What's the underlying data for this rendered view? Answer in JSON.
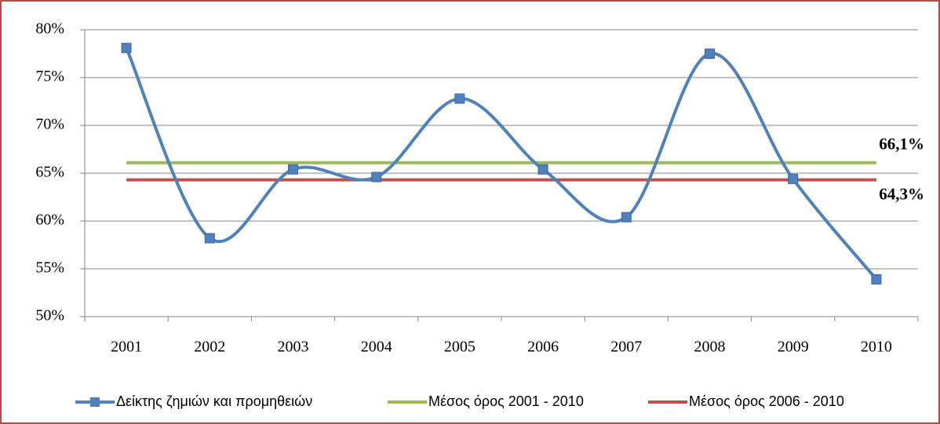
{
  "chart_data": {
    "type": "line",
    "categories": [
      "2001",
      "2002",
      "2003",
      "2004",
      "2005",
      "2006",
      "2007",
      "2008",
      "2009",
      "2010"
    ],
    "series": [
      {
        "name": "Δείκτης ζημιών και προμηθειών",
        "color": "#4f81bd",
        "smooth": true,
        "marker": "square",
        "values": [
          78.1,
          58.2,
          65.4,
          64.6,
          72.8,
          65.4,
          60.4,
          77.5,
          64.4,
          53.9
        ]
      },
      {
        "name": "Μέσος όρος 2001 - 2010",
        "color": "#9bbb59",
        "values": [
          66.1,
          66.1,
          66.1,
          66.1,
          66.1,
          66.1,
          66.1,
          66.1,
          66.1,
          66.1
        ],
        "value_labels": [
          null,
          null,
          null,
          null,
          null,
          null,
          null,
          null,
          null,
          "66,1%"
        ]
      },
      {
        "name": "Μέσος όρος 2006 - 2010",
        "color": "#c0504d",
        "values": [
          64.3,
          64.3,
          64.3,
          64.3,
          64.3,
          64.3,
          64.3,
          64.3,
          64.3,
          64.3
        ],
        "value_labels": [
          null,
          null,
          null,
          null,
          null,
          null,
          null,
          null,
          null,
          "64,3%"
        ]
      }
    ],
    "ylim": [
      50,
      80
    ],
    "yticks": [
      {
        "value": 50,
        "label": "50%"
      },
      {
        "value": 55,
        "label": "55%"
      },
      {
        "value": 60,
        "label": "60%"
      },
      {
        "value": 65,
        "label": "65%"
      },
      {
        "value": 70,
        "label": "70%"
      },
      {
        "value": 75,
        "label": "75%"
      },
      {
        "value": 80,
        "label": "80%"
      }
    ],
    "grid": true,
    "legend": "bottom"
  }
}
